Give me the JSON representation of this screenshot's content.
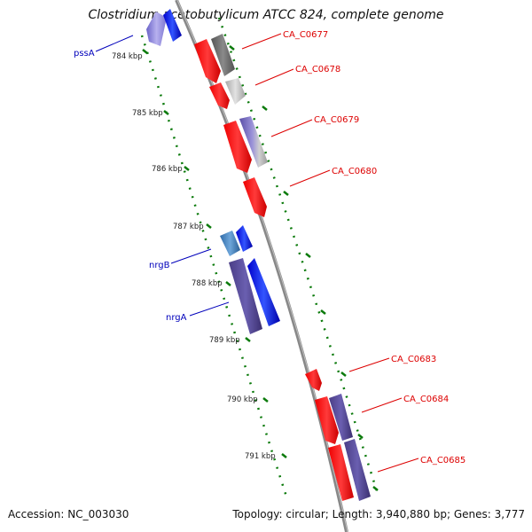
{
  "title": "Clostridium acetobutylicum ATCC 824, complete genome",
  "accession": "Accession: NC_003030",
  "topology": "Topology: circular; Length: 3,940,880 bp; Genes: 3,777",
  "colors": {
    "backbone": "#888888",
    "tick": "#0b7a0b",
    "label_red": "#dd0000",
    "label_blue": "#0000bb"
  },
  "scale_labels": [
    "784 kbp",
    "785 kbp",
    "786 kbp",
    "787 kbp",
    "788 kbp",
    "789 kbp",
    "790 kbp",
    "791 kbp"
  ],
  "gene_labels": [
    {
      "text": "pssA",
      "group": "blue"
    },
    {
      "text": "CA_C0677",
      "group": "red"
    },
    {
      "text": "CA_C0678",
      "group": "red"
    },
    {
      "text": "CA_C0679",
      "group": "red"
    },
    {
      "text": "CA_C0680",
      "group": "red"
    },
    {
      "text": "nrgB",
      "group": "blue"
    },
    {
      "text": "nrgA",
      "group": "blue"
    },
    {
      "text": "CA_C0683",
      "group": "red"
    },
    {
      "text": "CA_C0684",
      "group": "red"
    },
    {
      "text": "CA_C0685",
      "group": "red"
    }
  ]
}
